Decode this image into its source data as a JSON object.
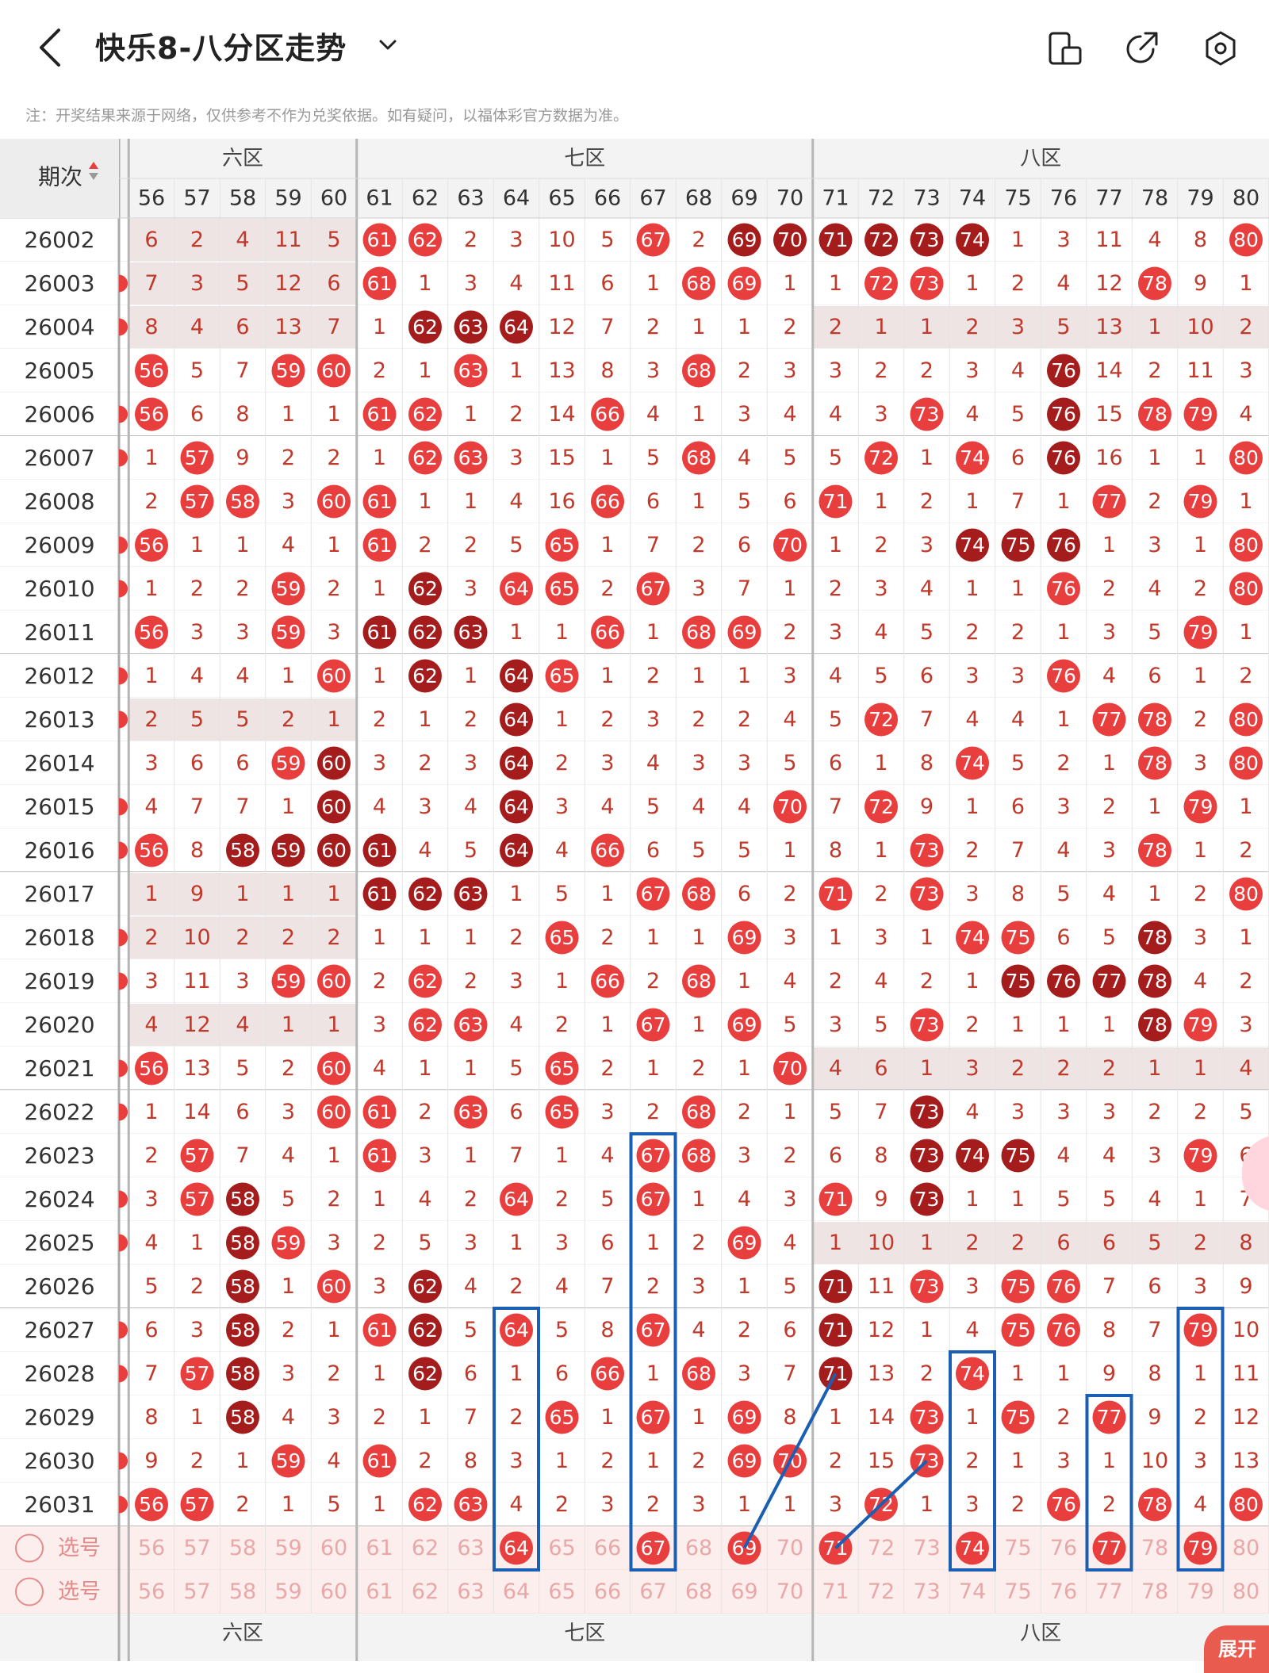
{
  "header": {
    "title": "快乐8-八分区走势",
    "icons": [
      "back-icon",
      "chevron-down-icon",
      "split-screen-icon",
      "share-icon",
      "settings-icon"
    ]
  },
  "notice": "注：开奖结果来源于网络，仅供参考不作为兑奖依据。如有疑问，以福体彩官方数据为准。",
  "table": {
    "period_header": "期次",
    "zones": [
      {
        "label": "六区",
        "visible_label": "六区",
        "first": 56,
        "last": 60
      },
      {
        "label": "七区",
        "visible_label": "七区",
        "first": 61,
        "last": 70
      },
      {
        "label": "八区",
        "visible_label": "八区",
        "first": 71,
        "last": 80
      }
    ],
    "columns": [
      56,
      57,
      58,
      59,
      60,
      61,
      62,
      63,
      64,
      65,
      66,
      67,
      68,
      69,
      70,
      71,
      72,
      73,
      74,
      75,
      76,
      77,
      78,
      79,
      80
    ],
    "rows": [
      {
        "period": "26002",
        "cells": [
          "6",
          "2",
          "4",
          "11",
          "5",
          "61",
          "62",
          "2",
          "3",
          "10",
          "5",
          "67",
          "2",
          "69",
          "70",
          "71",
          "72",
          "73",
          "74",
          "1",
          "3",
          "11",
          "4",
          "8",
          "80"
        ],
        "dark": [
          69,
          70,
          71,
          72,
          73,
          74
        ]
      },
      {
        "period": "26003",
        "cells": [
          "7",
          "3",
          "5",
          "12",
          "6",
          "61",
          "1",
          "3",
          "4",
          "11",
          "6",
          "1",
          "68",
          "69",
          "1",
          "1",
          "72",
          "73",
          "1",
          "2",
          "4",
          "12",
          "78",
          "9",
          "1"
        ],
        "dark": []
      },
      {
        "period": "26004",
        "cells": [
          "8",
          "4",
          "6",
          "13",
          "7",
          "1",
          "62",
          "63",
          "64",
          "12",
          "7",
          "2",
          "1",
          "1",
          "2",
          "2",
          "1",
          "1",
          "2",
          "3",
          "5",
          "13",
          "1",
          "10",
          "2"
        ],
        "dark": [
          62,
          63,
          64
        ]
      },
      {
        "period": "26005",
        "cells": [
          "56",
          "5",
          "7",
          "59",
          "60",
          "2",
          "1",
          "63",
          "1",
          "13",
          "8",
          "3",
          "68",
          "2",
          "3",
          "3",
          "2",
          "2",
          "3",
          "4",
          "76",
          "14",
          "2",
          "11",
          "3"
        ],
        "dark": [
          76
        ]
      },
      {
        "period": "26006",
        "cells": [
          "56",
          "6",
          "8",
          "1",
          "1",
          "61",
          "62",
          "1",
          "2",
          "14",
          "66",
          "4",
          "1",
          "3",
          "4",
          "4",
          "3",
          "73",
          "4",
          "5",
          "76",
          "15",
          "78",
          "79",
          "4"
        ],
        "dark": [
          76
        ]
      },
      {
        "period": "26007",
        "cells": [
          "1",
          "57",
          "9",
          "2",
          "2",
          "1",
          "62",
          "63",
          "3",
          "15",
          "1",
          "5",
          "68",
          "4",
          "5",
          "5",
          "72",
          "1",
          "74",
          "6",
          "76",
          "16",
          "1",
          "1",
          "80"
        ],
        "dark": [
          76
        ]
      },
      {
        "period": "26008",
        "cells": [
          "2",
          "57",
          "58",
          "3",
          "60",
          "61",
          "1",
          "1",
          "4",
          "16",
          "66",
          "6",
          "1",
          "5",
          "6",
          "71",
          "1",
          "2",
          "1",
          "7",
          "1",
          "77",
          "2",
          "79",
          "1"
        ],
        "dark": []
      },
      {
        "period": "26009",
        "cells": [
          "56",
          "1",
          "1",
          "4",
          "1",
          "61",
          "2",
          "2",
          "5",
          "65",
          "1",
          "7",
          "2",
          "6",
          "70",
          "1",
          "2",
          "3",
          "74",
          "75",
          "76",
          "1",
          "3",
          "1",
          "80"
        ],
        "dark": [
          74,
          75,
          76
        ]
      },
      {
        "period": "26010",
        "cells": [
          "1",
          "2",
          "2",
          "59",
          "2",
          "1",
          "62",
          "3",
          "64",
          "65",
          "2",
          "67",
          "3",
          "7",
          "1",
          "2",
          "3",
          "4",
          "1",
          "1",
          "76",
          "2",
          "4",
          "2",
          "80"
        ],
        "dark": [
          62
        ]
      },
      {
        "period": "26011",
        "cells": [
          "56",
          "3",
          "3",
          "59",
          "3",
          "61",
          "62",
          "63",
          "1",
          "1",
          "66",
          "1",
          "68",
          "69",
          "2",
          "3",
          "4",
          "5",
          "2",
          "2",
          "1",
          "3",
          "5",
          "79",
          "1"
        ],
        "dark": [
          61,
          62,
          63
        ]
      },
      {
        "period": "26012",
        "cells": [
          "1",
          "4",
          "4",
          "1",
          "60",
          "1",
          "62",
          "1",
          "64",
          "65",
          "1",
          "2",
          "1",
          "1",
          "3",
          "4",
          "5",
          "6",
          "3",
          "3",
          "76",
          "4",
          "6",
          "1",
          "2"
        ],
        "dark": [
          62,
          64
        ]
      },
      {
        "period": "26013",
        "cells": [
          "2",
          "5",
          "5",
          "2",
          "1",
          "2",
          "1",
          "2",
          "64",
          "1",
          "2",
          "3",
          "2",
          "2",
          "4",
          "5",
          "72",
          "7",
          "4",
          "4",
          "1",
          "77",
          "78",
          "2",
          "80"
        ],
        "dark": [
          64
        ]
      },
      {
        "period": "26014",
        "cells": [
          "3",
          "6",
          "6",
          "59",
          "60",
          "3",
          "2",
          "3",
          "64",
          "2",
          "3",
          "4",
          "3",
          "3",
          "5",
          "6",
          "1",
          "8",
          "74",
          "5",
          "2",
          "1",
          "78",
          "3",
          "80"
        ],
        "dark": [
          60,
          64
        ]
      },
      {
        "period": "26015",
        "cells": [
          "4",
          "7",
          "7",
          "1",
          "60",
          "4",
          "3",
          "4",
          "64",
          "3",
          "4",
          "5",
          "4",
          "4",
          "70",
          "7",
          "72",
          "9",
          "1",
          "6",
          "3",
          "2",
          "1",
          "79",
          "1"
        ],
        "dark": [
          60,
          64
        ]
      },
      {
        "period": "26016",
        "cells": [
          "56",
          "8",
          "58",
          "59",
          "60",
          "61",
          "4",
          "5",
          "64",
          "4",
          "66",
          "6",
          "5",
          "5",
          "1",
          "8",
          "1",
          "73",
          "2",
          "7",
          "4",
          "3",
          "78",
          "1",
          "2"
        ],
        "dark": [
          58,
          59,
          60,
          61,
          64
        ]
      },
      {
        "period": "26017",
        "cells": [
          "1",
          "9",
          "1",
          "1",
          "1",
          "61",
          "62",
          "63",
          "1",
          "5",
          "1",
          "67",
          "68",
          "6",
          "2",
          "71",
          "2",
          "73",
          "3",
          "8",
          "5",
          "4",
          "1",
          "2",
          "80"
        ],
        "dark": [
          61,
          62,
          63
        ]
      },
      {
        "period": "26018",
        "cells": [
          "2",
          "10",
          "2",
          "2",
          "2",
          "1",
          "1",
          "1",
          "2",
          "65",
          "2",
          "1",
          "1",
          "69",
          "3",
          "1",
          "3",
          "1",
          "74",
          "75",
          "6",
          "5",
          "78",
          "3",
          "1"
        ],
        "dark": [
          78
        ]
      },
      {
        "period": "26019",
        "cells": [
          "3",
          "11",
          "3",
          "59",
          "60",
          "2",
          "62",
          "2",
          "3",
          "1",
          "66",
          "2",
          "68",
          "1",
          "4",
          "2",
          "4",
          "2",
          "1",
          "75",
          "76",
          "77",
          "78",
          "4",
          "2"
        ],
        "dark": [
          75,
          76,
          77,
          78
        ]
      },
      {
        "period": "26020",
        "cells": [
          "4",
          "12",
          "4",
          "1",
          "1",
          "3",
          "62",
          "63",
          "4",
          "2",
          "1",
          "67",
          "1",
          "69",
          "5",
          "3",
          "5",
          "73",
          "2",
          "1",
          "1",
          "1",
          "78",
          "79",
          "3"
        ],
        "dark": [
          78
        ]
      },
      {
        "period": "26021",
        "cells": [
          "56",
          "13",
          "5",
          "2",
          "60",
          "4",
          "1",
          "1",
          "5",
          "65",
          "2",
          "1",
          "2",
          "1",
          "70",
          "4",
          "6",
          "1",
          "3",
          "2",
          "2",
          "2",
          "1",
          "1",
          "4"
        ],
        "dark": []
      },
      {
        "period": "26022",
        "cells": [
          "1",
          "14",
          "6",
          "3",
          "60",
          "61",
          "2",
          "63",
          "6",
          "65",
          "3",
          "2",
          "68",
          "2",
          "1",
          "5",
          "7",
          "73",
          "4",
          "3",
          "3",
          "3",
          "2",
          "2",
          "5"
        ],
        "dark": [
          73
        ]
      },
      {
        "period": "26023",
        "cells": [
          "2",
          "57",
          "7",
          "4",
          "1",
          "61",
          "3",
          "1",
          "7",
          "1",
          "4",
          "67",
          "68",
          "3",
          "2",
          "6",
          "8",
          "73",
          "74",
          "75",
          "4",
          "4",
          "3",
          "79",
          "6"
        ],
        "dark": [
          73,
          74,
          75
        ]
      },
      {
        "period": "26024",
        "cells": [
          "3",
          "57",
          "58",
          "5",
          "2",
          "1",
          "4",
          "2",
          "64",
          "2",
          "5",
          "67",
          "1",
          "4",
          "3",
          "71",
          "9",
          "73",
          "1",
          "1",
          "5",
          "5",
          "4",
          "1",
          "7"
        ],
        "dark": [
          58,
          73
        ]
      },
      {
        "period": "26025",
        "cells": [
          "4",
          "1",
          "58",
          "59",
          "3",
          "2",
          "5",
          "3",
          "1",
          "3",
          "6",
          "1",
          "2",
          "69",
          "4",
          "1",
          "10",
          "1",
          "2",
          "2",
          "6",
          "6",
          "5",
          "2",
          "8"
        ],
        "dark": [
          58
        ]
      },
      {
        "period": "26026",
        "cells": [
          "5",
          "2",
          "58",
          "1",
          "60",
          "3",
          "62",
          "4",
          "2",
          "4",
          "7",
          "2",
          "3",
          "1",
          "5",
          "71",
          "11",
          "73",
          "3",
          "75",
          "76",
          "7",
          "6",
          "3",
          "9"
        ],
        "dark": [
          58,
          62,
          71
        ]
      },
      {
        "period": "26027",
        "cells": [
          "6",
          "3",
          "58",
          "2",
          "1",
          "61",
          "62",
          "5",
          "64",
          "5",
          "8",
          "67",
          "4",
          "2",
          "6",
          "71",
          "12",
          "1",
          "4",
          "75",
          "76",
          "8",
          "7",
          "79",
          "10"
        ],
        "dark": [
          58,
          62,
          71
        ]
      },
      {
        "period": "26028",
        "cells": [
          "7",
          "57",
          "58",
          "3",
          "2",
          "1",
          "62",
          "6",
          "1",
          "6",
          "66",
          "1",
          "68",
          "3",
          "7",
          "71",
          "13",
          "2",
          "74",
          "1",
          "1",
          "9",
          "8",
          "1",
          "11"
        ],
        "dark": [
          58,
          62,
          71
        ]
      },
      {
        "period": "26029",
        "cells": [
          "8",
          "1",
          "58",
          "4",
          "3",
          "2",
          "1",
          "7",
          "2",
          "65",
          "1",
          "67",
          "1",
          "69",
          "8",
          "1",
          "14",
          "73",
          "1",
          "75",
          "2",
          "77",
          "9",
          "2",
          "12"
        ],
        "dark": [
          58
        ]
      },
      {
        "period": "26030",
        "cells": [
          "9",
          "2",
          "1",
          "59",
          "4",
          "61",
          "2",
          "8",
          "3",
          "1",
          "2",
          "1",
          "2",
          "69",
          "70",
          "2",
          "15",
          "73",
          "2",
          "1",
          "3",
          "1",
          "10",
          "3",
          "13"
        ],
        "dark": []
      },
      {
        "period": "26031",
        "cells": [
          "56",
          "57",
          "2",
          "1",
          "5",
          "1",
          "62",
          "63",
          "4",
          "2",
          "3",
          "2",
          "3",
          "1",
          "1",
          "3",
          "72",
          "1",
          "3",
          "2",
          "76",
          "2",
          "78",
          "4",
          "80"
        ],
        "dark": []
      }
    ],
    "pick_rows": [
      {
        "label": "选号",
        "selected": [
          64,
          67,
          69,
          71,
          74,
          77,
          79
        ]
      },
      {
        "label": "选号",
        "selected": []
      }
    ]
  },
  "fab_label": "展开",
  "colors": {
    "accent": "#e83e3e",
    "dark_ball": "#a51c1c",
    "number": "#c0392b",
    "annotation": "#1a5fb4",
    "pick_bg": "#fdeeee",
    "pick_text": "#e8a8a8"
  }
}
